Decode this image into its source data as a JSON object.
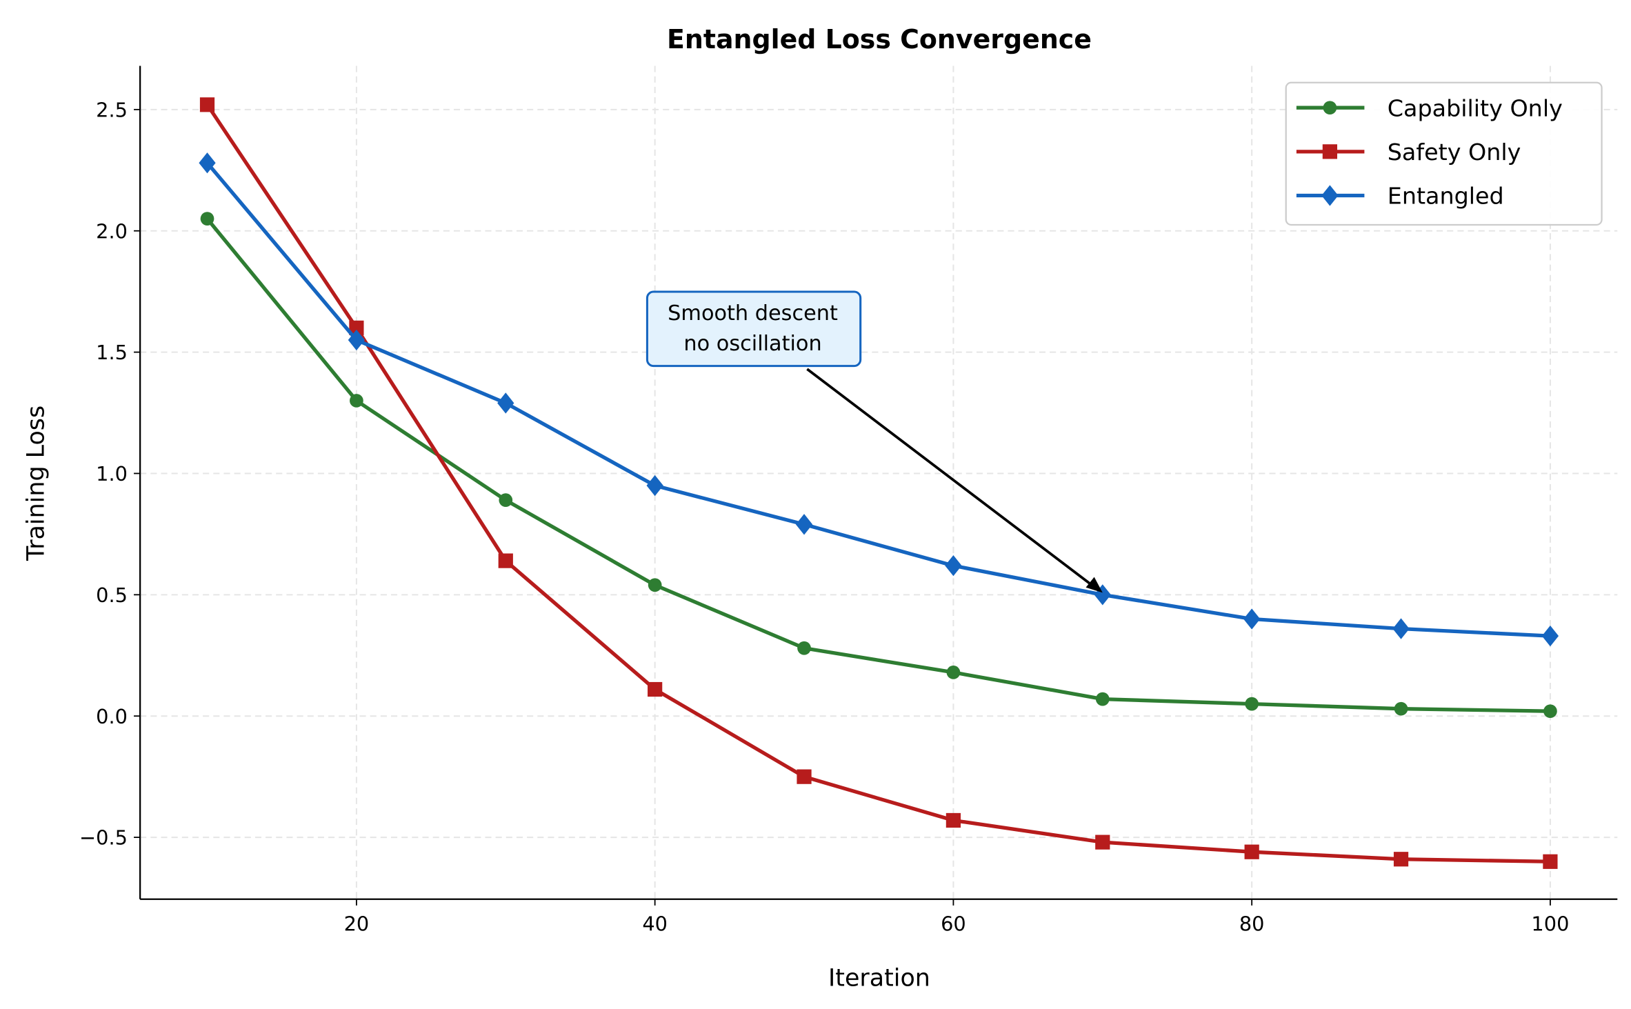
{
  "chart_data": {
    "type": "line",
    "title": "Entangled Loss Convergence",
    "xlabel": "Iteration",
    "ylabel": "Training Loss",
    "xlim": [
      5.5,
      104.5
    ],
    "ylim": [
      -0.755,
      2.68
    ],
    "x_ticks": [
      20,
      40,
      60,
      80,
      100
    ],
    "x_tick_labels": [
      "20",
      "40",
      "60",
      "80",
      "100"
    ],
    "y_ticks": [
      -0.5,
      0.0,
      0.5,
      1.0,
      1.5,
      2.0,
      2.5
    ],
    "y_tick_labels": [
      "−0.5",
      "0.0",
      "0.5",
      "1.0",
      "1.5",
      "2.0",
      "2.5"
    ],
    "grid": true,
    "legend_position": "top-right",
    "x": [
      10,
      20,
      30,
      40,
      50,
      60,
      70,
      80,
      90,
      100
    ],
    "series": [
      {
        "name": "Capability Only",
        "color": "#2e7d32",
        "marker": "circle",
        "values": [
          2.05,
          1.3,
          0.89,
          0.54,
          0.28,
          0.18,
          0.07,
          0.05,
          0.03,
          0.02
        ]
      },
      {
        "name": "Safety Only",
        "color": "#b71c1c",
        "marker": "square",
        "values": [
          2.52,
          1.6,
          0.64,
          0.11,
          -0.25,
          -0.43,
          -0.52,
          -0.56,
          -0.59,
          -0.6
        ]
      },
      {
        "name": "Entangled",
        "color": "#1565c0",
        "marker": "diamond",
        "values": [
          2.28,
          1.55,
          1.29,
          0.95,
          0.79,
          0.62,
          0.5,
          0.4,
          0.36,
          0.33
        ]
      }
    ],
    "annotation": {
      "lines": [
        "Smooth descent",
        "no oscillation"
      ],
      "points_to": {
        "x": 70,
        "y": 0.5
      },
      "box_fill": "#e3f2fd",
      "box_edge": "#1565c0"
    }
  }
}
